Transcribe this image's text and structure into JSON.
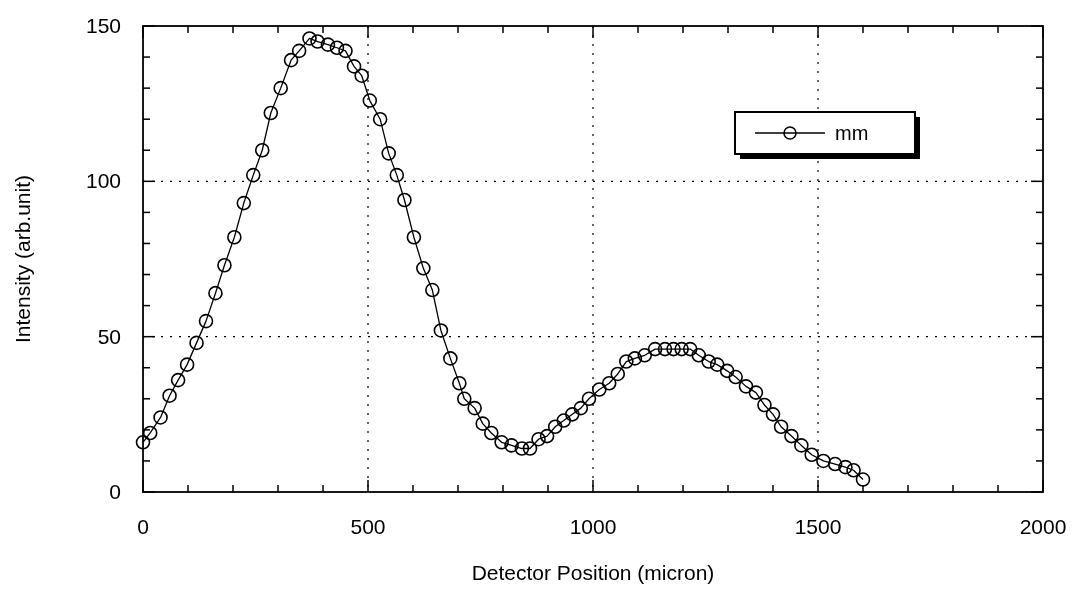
{
  "chart_data": {
    "type": "line",
    "xlabel": "Detector Position (micron)",
    "ylabel": "Intensity (arb.unit)",
    "xlim": [
      0,
      2000
    ],
    "ylim": [
      0,
      150
    ],
    "xticks": [
      0,
      {
        "value": 100,
        "label": null
      },
      {
        "value": 200,
        "label": null
      },
      {
        "value": 300,
        "label": null
      },
      {
        "value": 400,
        "label": null
      },
      500,
      {
        "value": 600,
        "label": null
      },
      {
        "value": 700,
        "label": null
      },
      {
        "value": 800,
        "label": null
      },
      {
        "value": 900,
        "label": null
      },
      1000,
      {
        "value": 1100,
        "label": null
      },
      {
        "value": 1200,
        "label": null
      },
      {
        "value": 1300,
        "label": null
      },
      {
        "value": 1400,
        "label": null
      },
      1500,
      {
        "value": 1600,
        "label": null
      },
      {
        "value": 1700,
        "label": null
      },
      {
        "value": 1800,
        "label": null
      },
      {
        "value": 1900,
        "label": null
      },
      2000
    ],
    "yticks": [
      0,
      {
        "value": 10,
        "label": null
      },
      {
        "value": 20,
        "label": null
      },
      {
        "value": 30,
        "label": null
      },
      {
        "value": 40,
        "label": null
      },
      50,
      {
        "value": 60,
        "label": null
      },
      {
        "value": 70,
        "label": null
      },
      {
        "value": 80,
        "label": null
      },
      {
        "value": 90,
        "label": null
      },
      100,
      {
        "value": 110,
        "label": null
      },
      {
        "value": 120,
        "label": null
      },
      {
        "value": 130,
        "label": null
      },
      {
        "value": 140,
        "label": null
      },
      150
    ],
    "grid": true,
    "legend": "top right",
    "marker": "circle",
    "line_style": "solid",
    "series": [
      {
        "name": "mm",
        "color": "#000000",
        "x": [
          0,
          16,
          39,
          59,
          78,
          98,
          119,
          140,
          161,
          181,
          203,
          224,
          245,
          265,
          284,
          306,
          329,
          347,
          370,
          388,
          411,
          431,
          450,
          469,
          486,
          504,
          527,
          546,
          564,
          581,
          602,
          623,
          643,
          662,
          683,
          703,
          714,
          737,
          755,
          774,
          797,
          819,
          842,
          860,
          879,
          898,
          916,
          935,
          954,
          973,
          991,
          1014,
          1036,
          1055,
          1074,
          1093,
          1115,
          1138,
          1160,
          1179,
          1197,
          1216,
          1235,
          1257,
          1276,
          1298,
          1317,
          1340,
          1362,
          1381,
          1400,
          1418,
          1441,
          1463,
          1486,
          1512,
          1538,
          1561,
          1579,
          1600
        ],
        "values": [
          16,
          19,
          24,
          31,
          36,
          41,
          48,
          55,
          64,
          73,
          82,
          93,
          102,
          110,
          122,
          130,
          139,
          142,
          146,
          145,
          144,
          143,
          142,
          137,
          134,
          126,
          120,
          109,
          102,
          94,
          82,
          72,
          65,
          52,
          43,
          35,
          30,
          27,
          22,
          19,
          16,
          15,
          14,
          14,
          17,
          18,
          21,
          23,
          25,
          27,
          30,
          33,
          35,
          38,
          42,
          43,
          44,
          46,
          46,
          46,
          46,
          46,
          44,
          42,
          41,
          39,
          37,
          34,
          32,
          28,
          25,
          21,
          18,
          15,
          12,
          10,
          9,
          8,
          7,
          4
        ]
      }
    ]
  }
}
